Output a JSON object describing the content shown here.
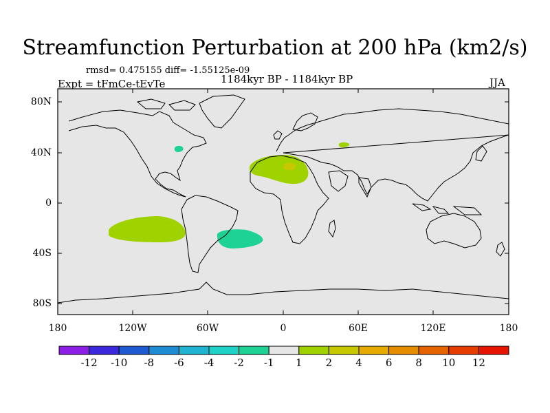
{
  "title": "Streamfunction Perturbation at 200 hPa (km2/s)",
  "stats_line": "rmsd= 0.475155 diff= -1.55125e-09",
  "period_line": "1184kyr BP - 1184kyr BP",
  "expt_line": "Expt = tFmCe-tEvTe",
  "season": "JJA",
  "lat_labels": [
    "80N",
    "40N",
    "0",
    "40S",
    "80S"
  ],
  "lon_labels": [
    "180",
    "120W",
    "60W",
    "0",
    "60E",
    "120E",
    "180"
  ],
  "colorbar": {
    "colors": [
      "#8c1ee6",
      "#3c28dc",
      "#1e5ad2",
      "#1e8cd2",
      "#1eb4d2",
      "#1ed2c8",
      "#1ed296",
      "#e6e6e6",
      "#a0d200",
      "#c8c800",
      "#e6aa00",
      "#e68c00",
      "#e66400",
      "#e63c00",
      "#e61400"
    ],
    "labels": [
      "-12",
      "-10",
      "-8",
      "-6",
      "-4",
      "-2",
      "-1",
      "1",
      "2",
      "4",
      "6",
      "8",
      "10",
      "12"
    ]
  },
  "anomalies": [
    {
      "name": "south-pacific-positive",
      "color": "#a0d200"
    },
    {
      "name": "south-atlantic-negative",
      "color": "#1ed296"
    },
    {
      "name": "north-africa-positive",
      "color": "#a0d200"
    },
    {
      "name": "north-africa-core",
      "color": "#c8c800"
    },
    {
      "name": "caspian-positive",
      "color": "#a0d200"
    },
    {
      "name": "great-lakes-negative",
      "color": "#1ed296"
    }
  ],
  "colors": {
    "land_ocean": "#e6e6e6",
    "coast": "#000000"
  }
}
